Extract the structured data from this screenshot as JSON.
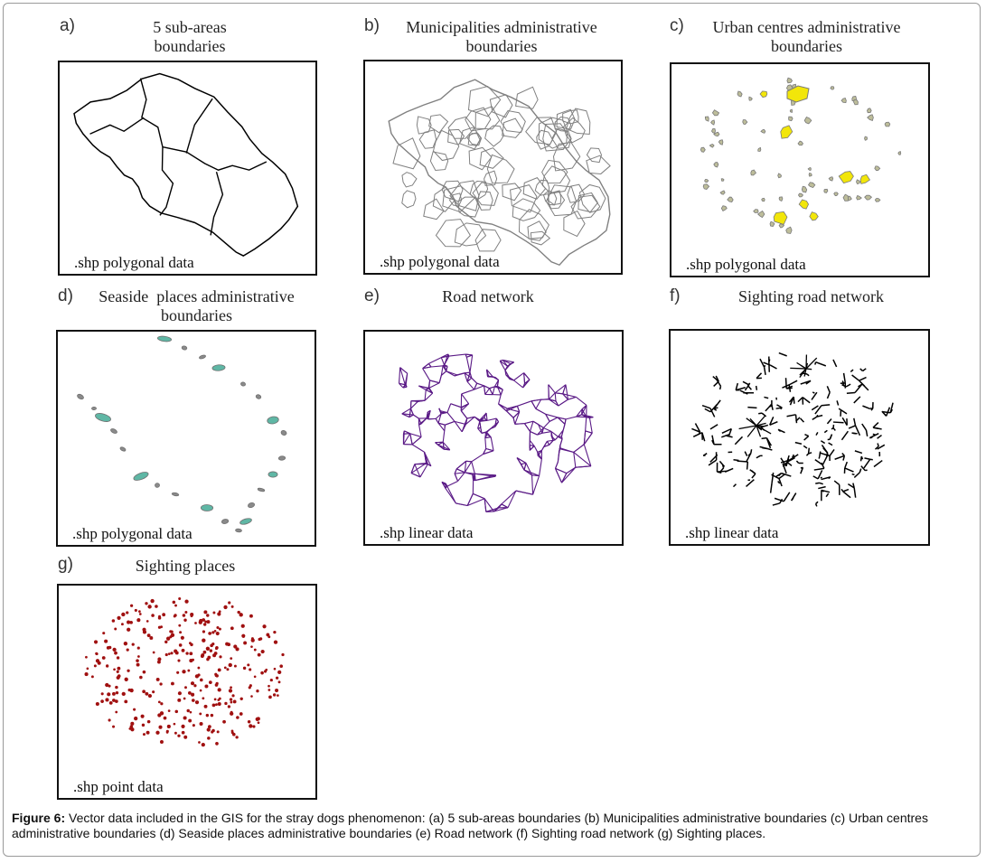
{
  "panels": [
    {
      "letter": "a)",
      "title_line1": "5 sub-areas",
      "title_line2": "boundaries",
      "data_label": ".shp polygonal data"
    },
    {
      "letter": "b)",
      "title_line1": "Municipalities administrative",
      "title_line2": "boundaries",
      "data_label": ".shp polygonal data"
    },
    {
      "letter": "c)",
      "title_line1": "Urban centres administrative",
      "title_line2": "boundaries",
      "data_label": ".shp polygonal data"
    },
    {
      "letter": "d)",
      "title_line1": "Seaside  places administrative",
      "title_line2": "boundaries",
      "data_label": ".shp polygonal data"
    },
    {
      "letter": "e)",
      "title_line1": "Road network",
      "title_line2": "",
      "data_label": ".shp linear data"
    },
    {
      "letter": "f)",
      "title_line1": "Sighting road network",
      "title_line2": "",
      "data_label": ".shp linear data"
    },
    {
      "letter": "g)",
      "title_line1": "Sighting places",
      "title_line2": "",
      "data_label": ".shp point data"
    }
  ],
  "caption": {
    "label": "Figure 6:",
    "text": " Vector data included in the GIS for the stray dogs phenomenon: (a) 5 sub-areas boundaries (b) Municipalities administrative boundaries (c) Urban centres administrative boundaries (d) Seaside places administrative boundaries (e) Road network (f) Sighting road network (g) Sighting places."
  },
  "colors": {
    "sub_areas": "#000000",
    "municipalities": "#808080",
    "urban_fill": "#f2e60a",
    "urban_stroke": "#7a7a7a",
    "seaside_fill": "#5fb7a5",
    "seaside_stroke": "#707070",
    "roads": "#5a1a86",
    "sighting_roads": "#000000",
    "sighting_points": "#a01010"
  }
}
